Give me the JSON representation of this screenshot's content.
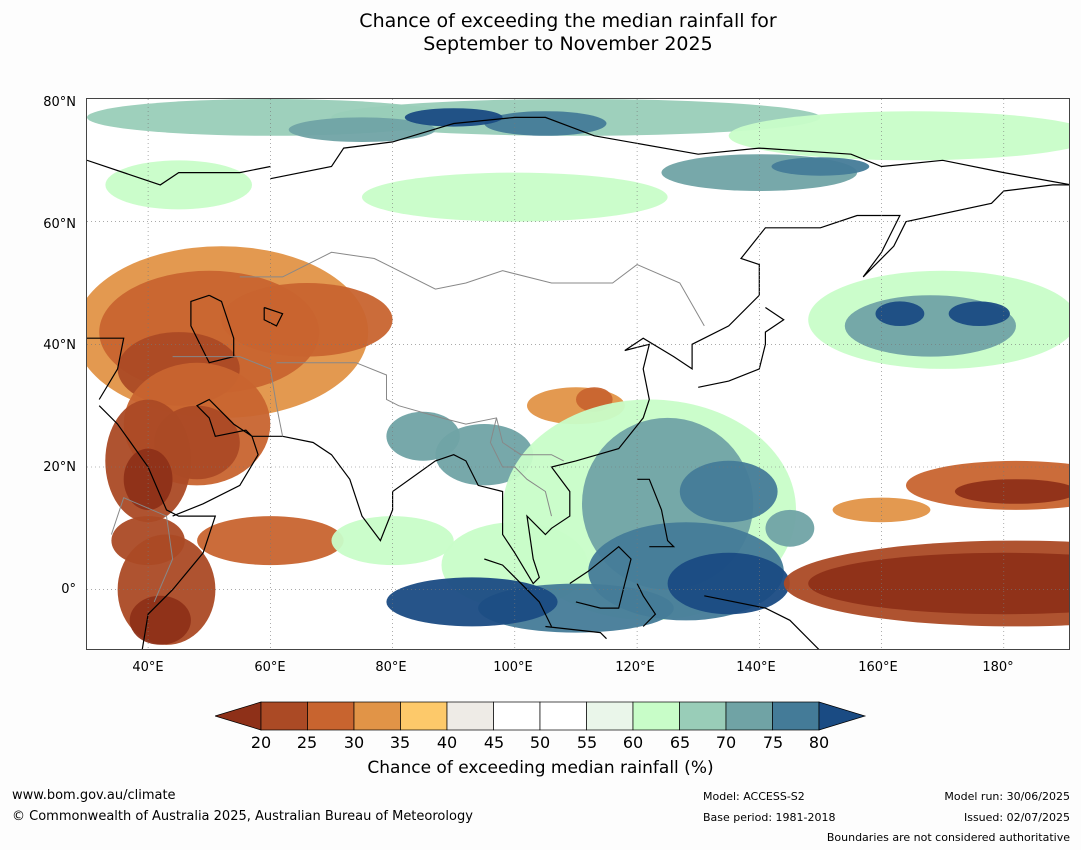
{
  "title": {
    "line1": "Chance of exceeding the median rainfall for",
    "line2": "September to November 2025"
  },
  "map": {
    "lat_labels": [
      "80°N",
      "60°N",
      "40°N",
      "20°N",
      "0°"
    ],
    "lon_labels": [
      "40°E",
      "60°E",
      "80°E",
      "100°E",
      "120°E",
      "140°E",
      "160°E",
      "180°"
    ],
    "lon_range": [
      30,
      191
    ],
    "lat_range": [
      -10,
      80
    ]
  },
  "colorbar": {
    "title": "Chance of exceeding median rainfall (%)",
    "ticks": [
      "20",
      "25",
      "30",
      "35",
      "40",
      "45",
      "50",
      "55",
      "60",
      "65",
      "70",
      "75",
      "80"
    ],
    "colors": [
      "#8e3018",
      "#ab4a25",
      "#c8642f",
      "#e19447",
      "#fdc96a",
      "#eeebe6",
      "#ffffff",
      "#ffffff",
      "#eaf6ea",
      "#c8fdc8",
      "#99cdb8",
      "#70a3a5",
      "#447b98",
      "#1a4b83"
    ]
  },
  "footer": {
    "website": "www.bom.gov.au/climate",
    "copyright": "© Commonwealth of Australia 2025, Australian Bureau of Meteorology",
    "model": "Model: ACCESS-S2",
    "base_period": "Base period: 1981-2018",
    "model_run": "Model run: 30/06/2025",
    "issued": "Issued: 02/07/2025",
    "disclaimer": "Boundaries are not considered authoritative"
  }
}
